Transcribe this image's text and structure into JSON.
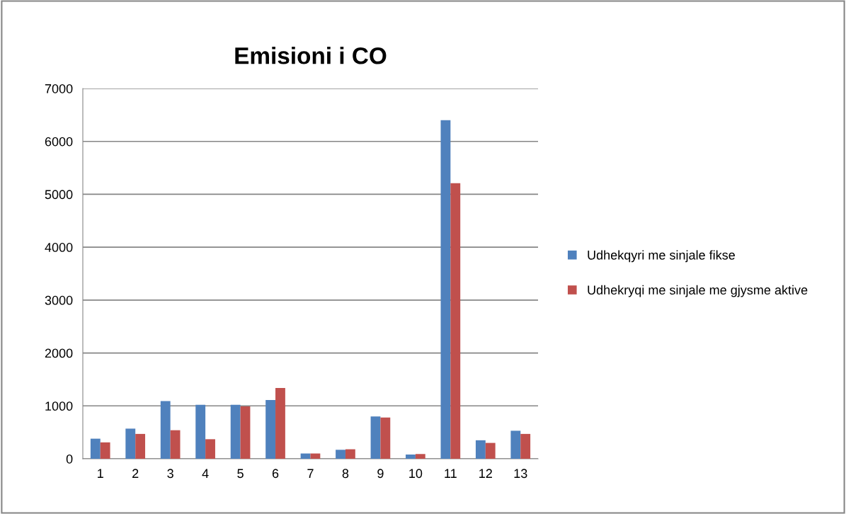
{
  "chart_data": {
    "type": "bar",
    "title": "Emisioni i CO",
    "categories": [
      "1",
      "2",
      "3",
      "4",
      "5",
      "6",
      "7",
      "8",
      "9",
      "10",
      "11",
      "12",
      "13"
    ],
    "series": [
      {
        "name": "Udhekqyri me sinjale fikse",
        "color": "#4f81bd",
        "values": [
          380,
          570,
          1090,
          1020,
          1020,
          1110,
          100,
          170,
          800,
          80,
          6400,
          350,
          530
        ]
      },
      {
        "name": "Udhekryqi me sinjale me gjysme aktive",
        "color": "#c0504d",
        "values": [
          310,
          470,
          540,
          370,
          990,
          1340,
          100,
          180,
          780,
          90,
          5210,
          300,
          470
        ]
      }
    ],
    "ylim": [
      0,
      7000
    ],
    "yticks": [
      0,
      1000,
      2000,
      3000,
      4000,
      5000,
      6000,
      7000
    ],
    "grid": "y",
    "legend": "right"
  }
}
